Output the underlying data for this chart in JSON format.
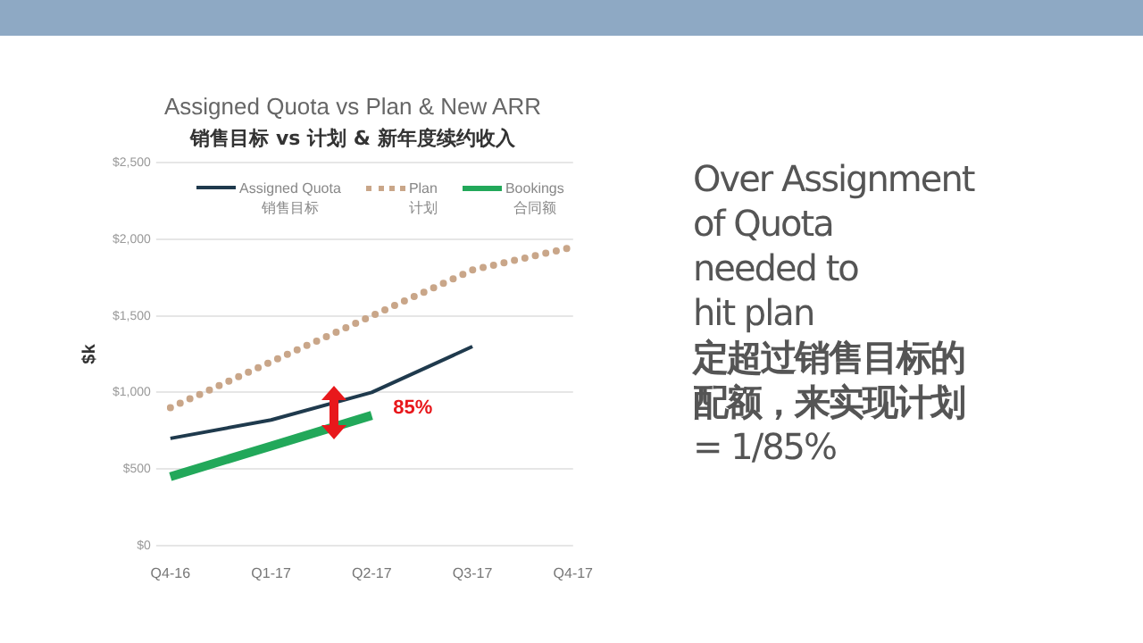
{
  "chart_data": {
    "type": "line",
    "title": "Assigned Quota vs Plan & New ARR",
    "subtitle": "销售目标 vs 计划 & 新年度续约收入",
    "ylabel": "$k",
    "categories": [
      "Q4-16",
      "Q1-17",
      "Q2-17",
      "Q3-17",
      "Q4-17"
    ],
    "series": [
      {
        "name": "Assigned Quota\n销售目标",
        "color": "#1f3a4d",
        "values": [
          700,
          820,
          1000,
          1300,
          null
        ]
      },
      {
        "name": "Plan\n计划",
        "color": "#c9a689",
        "values": [
          900,
          1200,
          1500,
          1800,
          1950
        ],
        "line_style": "dotted"
      },
      {
        "name": "Bookings\n合同额",
        "color": "#22a85a",
        "values": [
          450,
          650,
          850,
          null,
          null
        ]
      }
    ],
    "ylim": [
      0,
      2500
    ],
    "yticks": [
      {
        "value": 0,
        "label": "$0"
      },
      {
        "value": 500,
        "label": "$500"
      },
      {
        "value": 1000,
        "label": "$1,000"
      },
      {
        "value": 1500,
        "label": "$1,500"
      },
      {
        "value": 2000,
        "label": "$2,000"
      },
      {
        "value": 2500,
        "label": "$2,500"
      }
    ],
    "grid": "y",
    "legend": "top",
    "marker": "none",
    "annotations": [
      {
        "text": "85%",
        "x": "Q2-17",
        "y": 900
      },
      "Over Assignment\nof Quota\nneeded to\nhit plan",
      "定超过销售目标的配额，来实现计划",
      "= 1/85%"
    ]
  }
}
